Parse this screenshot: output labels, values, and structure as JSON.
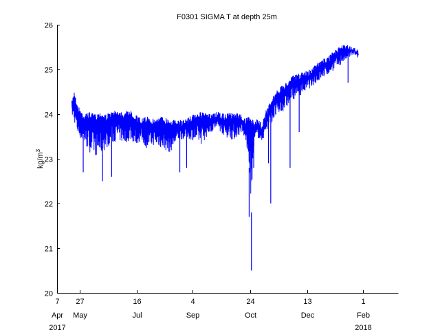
{
  "chart_data": {
    "type": "line",
    "title": "F0301 SIGMA T at depth 25m",
    "ylabel_main": "kg/m",
    "ylabel_sup": "3",
    "xlabel": "",
    "xlim": [
      "2017-04-07",
      "2018-02-01"
    ],
    "ylim": [
      20,
      26
    ],
    "grid": false,
    "color": "#0000ff",
    "x_ticks": [
      {
        "date": "2017-04-07",
        "day": "7",
        "month": "Apr",
        "year": "2017"
      },
      {
        "date": "2017-04-27",
        "day": "27",
        "month": "May",
        "year": ""
      },
      {
        "date": "2017-06-16",
        "day": "16",
        "month": "Jul",
        "year": ""
      },
      {
        "date": "2017-08-04",
        "day": "4",
        "month": "Sep",
        "year": ""
      },
      {
        "date": "2017-09-24",
        "day": "24",
        "month": "Oct",
        "year": ""
      },
      {
        "date": "2017-11-13",
        "day": "13",
        "month": "Dec",
        "year": ""
      },
      {
        "date": "2018-01-01",
        "day": "1",
        "month": "Feb",
        "year": "2018"
      }
    ],
    "y_ticks": [
      20,
      21,
      22,
      23,
      24,
      25,
      26
    ],
    "series": [
      {
        "x": [
          "2017-04-20",
          "2017-04-22",
          "2017-04-25",
          "2017-04-28",
          "2017-05-01",
          "2017-05-05",
          "2017-05-10",
          "2017-05-15",
          "2017-05-20",
          "2017-05-25",
          "2017-05-30",
          "2017-06-05",
          "2017-06-10",
          "2017-06-15",
          "2017-06-20",
          "2017-06-25",
          "2017-07-01",
          "2017-07-08",
          "2017-07-15",
          "2017-07-22",
          "2017-07-29",
          "2017-08-05",
          "2017-08-12",
          "2017-08-19",
          "2017-08-26",
          "2017-09-02",
          "2017-09-09",
          "2017-09-16",
          "2017-09-20",
          "2017-09-23",
          "2017-09-25",
          "2017-09-27",
          "2017-09-30",
          "2017-10-04",
          "2017-10-08",
          "2017-10-12",
          "2017-10-16",
          "2017-10-20",
          "2017-10-25",
          "2017-10-30",
          "2017-11-05",
          "2017-11-10",
          "2017-11-15",
          "2017-11-20",
          "2017-11-25",
          "2017-12-01",
          "2017-12-06",
          "2017-12-11",
          "2017-12-16",
          "2017-12-20",
          "2017-12-24",
          "2017-12-28"
        ],
        "upper": [
          24.3,
          24.55,
          24.2,
          24.1,
          24.0,
          24.05,
          24.0,
          24.05,
          24.0,
          24.05,
          24.1,
          24.05,
          24.1,
          24.0,
          23.9,
          23.95,
          23.9,
          23.95,
          23.9,
          23.85,
          23.9,
          24.0,
          24.05,
          24.0,
          24.05,
          24.0,
          24.05,
          24.0,
          23.9,
          23.95,
          23.9,
          23.85,
          23.9,
          23.8,
          24.1,
          24.3,
          24.5,
          24.6,
          24.7,
          24.85,
          24.9,
          24.95,
          25.0,
          25.1,
          25.2,
          25.3,
          25.4,
          25.5,
          25.6,
          25.55,
          25.5,
          25.45
        ],
        "lower": [
          23.9,
          23.7,
          23.4,
          23.3,
          23.2,
          23.0,
          22.9,
          22.9,
          23.1,
          23.2,
          23.3,
          23.2,
          23.3,
          23.2,
          23.3,
          23.1,
          23.2,
          23.1,
          23.0,
          23.3,
          23.4,
          23.3,
          23.2,
          23.5,
          23.6,
          23.4,
          23.3,
          23.5,
          23.3,
          22.5,
          21.5,
          23.2,
          23.4,
          23.3,
          23.5,
          23.7,
          23.8,
          23.9,
          24.0,
          24.2,
          24.3,
          24.4,
          24.5,
          24.6,
          24.7,
          24.8,
          24.9,
          25.0,
          25.1,
          25.2,
          25.3,
          25.2
        ],
        "spikes": [
          {
            "x": "2017-04-30",
            "y": 22.7
          },
          {
            "x": "2017-05-17",
            "y": 22.5
          },
          {
            "x": "2017-05-25",
            "y": 22.6
          },
          {
            "x": "2017-07-24",
            "y": 22.7
          },
          {
            "x": "2017-07-30",
            "y": 22.8
          },
          {
            "x": "2017-09-23",
            "y": 21.7
          },
          {
            "x": "2017-09-25",
            "y": 20.5
          },
          {
            "x": "2017-09-27",
            "y": 22.8
          },
          {
            "x": "2017-10-10",
            "y": 22.9
          },
          {
            "x": "2017-10-12",
            "y": 22.0
          },
          {
            "x": "2017-10-29",
            "y": 22.8
          },
          {
            "x": "2017-11-06",
            "y": 23.6
          },
          {
            "x": "2017-12-19",
            "y": 24.7
          }
        ]
      }
    ]
  }
}
